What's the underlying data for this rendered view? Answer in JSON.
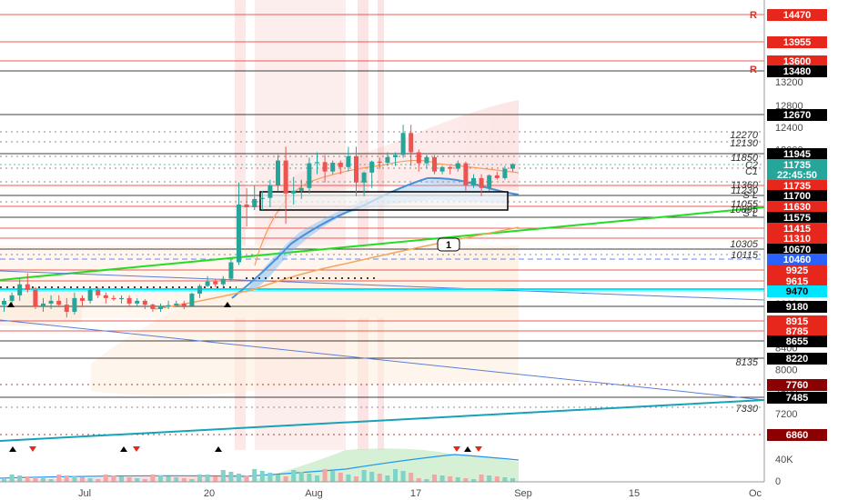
{
  "chart_data": {
    "type": "candlestick",
    "price_axis": {
      "ticks": [
        12800,
        12400,
        12000,
        11600,
        11200,
        10800,
        10400,
        10000,
        9600,
        9200,
        8800,
        8400,
        8000,
        7600,
        7200
      ],
      "extra_ticks": [
        13200,
        40000
      ],
      "ylim": [
        6800,
        14600
      ]
    },
    "time_axis": {
      "ticks": [
        "Jul",
        "20",
        "Aug",
        "17",
        "Sep",
        "15",
        "Oc"
      ]
    },
    "level_badges": [
      {
        "value": "14470",
        "bg": "#e8271c",
        "fg": "#ffffff"
      },
      {
        "value": "13955",
        "bg": "#e8271c",
        "fg": "#ffffff"
      },
      {
        "value": "13600",
        "bg": "#e8271c",
        "fg": "#ffffff"
      },
      {
        "value": "13480",
        "bg": "#000000",
        "fg": "#ffffff"
      },
      {
        "value": "12670",
        "bg": "#000000",
        "fg": "#ffffff"
      },
      {
        "value": "11945",
        "bg": "#000000",
        "fg": "#ffffff"
      },
      {
        "value": "11735",
        "bg": "#26a69a",
        "fg": "#ffffff"
      },
      {
        "value": "22:45:50",
        "bg": "#26a69a",
        "fg": "#ffffff"
      },
      {
        "value": "11735",
        "bg": "#e8271c",
        "fg": "#ffffff"
      },
      {
        "value": "11700",
        "bg": "#000000",
        "fg": "#ffffff"
      },
      {
        "value": "11630",
        "bg": "#e8271c",
        "fg": "#ffffff"
      },
      {
        "value": "11575",
        "bg": "#000000",
        "fg": "#ffffff"
      },
      {
        "value": "11415",
        "bg": "#e8271c",
        "fg": "#ffffff"
      },
      {
        "value": "11310",
        "bg": "#e8271c",
        "fg": "#ffffff"
      },
      {
        "value": "10670",
        "bg": "#000000",
        "fg": "#ffffff"
      },
      {
        "value": "10460",
        "bg": "#2962ff",
        "fg": "#ffffff"
      },
      {
        "value": "9925",
        "bg": "#e8271c",
        "fg": "#ffffff"
      },
      {
        "value": "9615",
        "bg": "#e8271c",
        "fg": "#ffffff"
      },
      {
        "value": "9470",
        "bg": "#00e5ff",
        "fg": "#000000"
      },
      {
        "value": "9180",
        "bg": "#000000",
        "fg": "#ffffff"
      },
      {
        "value": "8915",
        "bg": "#e8271c",
        "fg": "#ffffff"
      },
      {
        "value": "8785",
        "bg": "#e8271c",
        "fg": "#ffffff"
      },
      {
        "value": "8655",
        "bg": "#000000",
        "fg": "#ffffff"
      },
      {
        "value": "8220",
        "bg": "#000000",
        "fg": "#ffffff"
      },
      {
        "value": "7760",
        "bg": "#8b0000",
        "fg": "#ffffff"
      },
      {
        "value": "7485",
        "bg": "#000000",
        "fg": "#ffffff"
      },
      {
        "value": "6860",
        "bg": "#8b0000",
        "fg": "#ffffff"
      }
    ],
    "level_labels": [
      "12270",
      "12130",
      "11850",
      "C2",
      "C1",
      "11360",
      "11230",
      "S L",
      "11055",
      "10895",
      "S L",
      "10305",
      "10115",
      "8135",
      "7330"
    ],
    "marker_letters": [
      "R",
      "R"
    ],
    "annotation_labels": [
      "1"
    ],
    "candles": [
      {
        "date": "Jun 27",
        "o": 9180,
        "h": 9300,
        "l": 9050,
        "c": 9250
      },
      {
        "date": "Jun 28",
        "o": 9250,
        "h": 9400,
        "l": 9150,
        "c": 9350
      },
      {
        "date": "Jun 29",
        "o": 9350,
        "h": 9650,
        "l": 9250,
        "c": 9550
      },
      {
        "date": "Jun 30",
        "o": 9550,
        "h": 9750,
        "l": 9400,
        "c": 9450
      },
      {
        "date": "Jul 1",
        "o": 9450,
        "h": 9500,
        "l": 9100,
        "c": 9150
      },
      {
        "date": "Jul 2",
        "o": 9150,
        "h": 9300,
        "l": 9050,
        "c": 9200
      },
      {
        "date": "Jul 3",
        "o": 9200,
        "h": 9350,
        "l": 9100,
        "c": 9250
      },
      {
        "date": "Jul 4",
        "o": 9250,
        "h": 9350,
        "l": 9150,
        "c": 9180
      },
      {
        "date": "Jul 5",
        "o": 9180,
        "h": 9300,
        "l": 8950,
        "c": 9050
      },
      {
        "date": "Jul 6",
        "o": 9050,
        "h": 9400,
        "l": 9000,
        "c": 9300
      },
      {
        "date": "Jul 7",
        "o": 9300,
        "h": 9350,
        "l": 9150,
        "c": 9250
      },
      {
        "date": "Jul 8",
        "o": 9250,
        "h": 9500,
        "l": 9200,
        "c": 9450
      },
      {
        "date": "Jul 9",
        "o": 9450,
        "h": 9500,
        "l": 9300,
        "c": 9350
      },
      {
        "date": "Jul 10",
        "o": 9350,
        "h": 9400,
        "l": 9200,
        "c": 9300
      },
      {
        "date": "Jul 11",
        "o": 9300,
        "h": 9350,
        "l": 9250,
        "c": 9280
      },
      {
        "date": "Jul 12",
        "o": 9280,
        "h": 9350,
        "l": 9200,
        "c": 9300
      },
      {
        "date": "Jul 13",
        "o": 9300,
        "h": 9350,
        "l": 9150,
        "c": 9200
      },
      {
        "date": "Jul 14",
        "o": 9200,
        "h": 9300,
        "l": 9150,
        "c": 9250
      },
      {
        "date": "Jul 15",
        "o": 9250,
        "h": 9280,
        "l": 9100,
        "c": 9180
      },
      {
        "date": "Jul 16",
        "o": 9180,
        "h": 9200,
        "l": 9050,
        "c": 9100
      },
      {
        "date": "Jul 17",
        "o": 9100,
        "h": 9200,
        "l": 9050,
        "c": 9150
      },
      {
        "date": "Jul 18",
        "o": 9150,
        "h": 9250,
        "l": 9100,
        "c": 9170
      },
      {
        "date": "Jul 19",
        "o": 9170,
        "h": 9250,
        "l": 9150,
        "c": 9200
      },
      {
        "date": "Jul 20",
        "o": 9200,
        "h": 9250,
        "l": 9100,
        "c": 9160
      },
      {
        "date": "Jul 21",
        "o": 9160,
        "h": 9400,
        "l": 9150,
        "c": 9380
      },
      {
        "date": "Jul 22",
        "o": 9380,
        "h": 9550,
        "l": 9300,
        "c": 9520
      },
      {
        "date": "Jul 23",
        "o": 9520,
        "h": 9700,
        "l": 9500,
        "c": 9600
      },
      {
        "date": "Jul 24",
        "o": 9600,
        "h": 9650,
        "l": 9500,
        "c": 9550
      },
      {
        "date": "Jul 25",
        "o": 9550,
        "h": 9700,
        "l": 9500,
        "c": 9650
      },
      {
        "date": "Jul 26",
        "o": 9650,
        "h": 10000,
        "l": 9600,
        "c": 9950
      },
      {
        "date": "Jul 27",
        "o": 9950,
        "h": 11400,
        "l": 9900,
        "c": 11000
      },
      {
        "date": "Jul 28",
        "o": 11000,
        "h": 11300,
        "l": 10600,
        "c": 10950
      },
      {
        "date": "Jul 29",
        "o": 10950,
        "h": 11350,
        "l": 10900,
        "c": 11100
      },
      {
        "date": "Jul 30",
        "o": 11100,
        "h": 11250,
        "l": 10900,
        "c": 11120
      },
      {
        "date": "Jul 31",
        "o": 11120,
        "h": 11450,
        "l": 10950,
        "c": 11350
      },
      {
        "date": "Aug 1",
        "o": 11350,
        "h": 11900,
        "l": 11250,
        "c": 11800
      },
      {
        "date": "Aug 2",
        "o": 11800,
        "h": 12050,
        "l": 10650,
        "c": 11200
      },
      {
        "date": "Aug 3",
        "o": 11200,
        "h": 11500,
        "l": 11000,
        "c": 11250
      },
      {
        "date": "Aug 4",
        "o": 11250,
        "h": 11450,
        "l": 11100,
        "c": 11300
      },
      {
        "date": "Aug 5",
        "o": 11300,
        "h": 11850,
        "l": 11200,
        "c": 11750
      },
      {
        "date": "Aug 6",
        "o": 11750,
        "h": 11950,
        "l": 11550,
        "c": 11770
      },
      {
        "date": "Aug 7",
        "o": 11770,
        "h": 11900,
        "l": 11400,
        "c": 11600
      },
      {
        "date": "Aug 8",
        "o": 11600,
        "h": 11800,
        "l": 11550,
        "c": 11760
      },
      {
        "date": "Aug 9",
        "o": 11760,
        "h": 11800,
        "l": 11550,
        "c": 11680
      },
      {
        "date": "Aug 10",
        "o": 11680,
        "h": 12050,
        "l": 11600,
        "c": 11880
      },
      {
        "date": "Aug 11",
        "o": 11880,
        "h": 12050,
        "l": 11150,
        "c": 11400
      },
      {
        "date": "Aug 12",
        "o": 11400,
        "h": 11600,
        "l": 11150,
        "c": 11580
      },
      {
        "date": "Aug 13",
        "o": 11580,
        "h": 11800,
        "l": 11300,
        "c": 11780
      },
      {
        "date": "Aug 14",
        "o": 11780,
        "h": 11850,
        "l": 11650,
        "c": 11760
      },
      {
        "date": "Aug 15",
        "o": 11760,
        "h": 11950,
        "l": 11700,
        "c": 11860
      },
      {
        "date": "Aug 16",
        "o": 11860,
        "h": 11950,
        "l": 11700,
        "c": 11900
      },
      {
        "date": "Aug 17",
        "o": 11900,
        "h": 12450,
        "l": 11850,
        "c": 12300
      },
      {
        "date": "Aug 18",
        "o": 12300,
        "h": 12450,
        "l": 11700,
        "c": 11950
      },
      {
        "date": "Aug 19",
        "o": 11950,
        "h": 12000,
        "l": 11600,
        "c": 11750
      },
      {
        "date": "Aug 20",
        "o": 11750,
        "h": 11900,
        "l": 11650,
        "c": 11860
      },
      {
        "date": "Aug 21",
        "o": 11860,
        "h": 11900,
        "l": 11550,
        "c": 11600
      },
      {
        "date": "Aug 22",
        "o": 11600,
        "h": 11700,
        "l": 11550,
        "c": 11680
      },
      {
        "date": "Aug 23",
        "o": 11680,
        "h": 11700,
        "l": 11550,
        "c": 11650
      },
      {
        "date": "Aug 24",
        "o": 11650,
        "h": 11800,
        "l": 11600,
        "c": 11750
      },
      {
        "date": "Aug 25",
        "o": 11750,
        "h": 11780,
        "l": 11250,
        "c": 11350
      },
      {
        "date": "Aug 26",
        "o": 11350,
        "h": 11550,
        "l": 11300,
        "c": 11480
      },
      {
        "date": "Aug 27",
        "o": 11480,
        "h": 11550,
        "l": 11150,
        "c": 11300
      },
      {
        "date": "Aug 28",
        "o": 11300,
        "h": 11550,
        "l": 11250,
        "c": 11530
      },
      {
        "date": "Aug 29",
        "o": 11530,
        "h": 11600,
        "l": 11450,
        "c": 11480
      },
      {
        "date": "Aug 30",
        "o": 11480,
        "h": 11700,
        "l": 11450,
        "c": 11650
      },
      {
        "date": "Aug 31",
        "o": 11650,
        "h": 11750,
        "l": 11600,
        "c": 11735
      }
    ],
    "colors": {
      "up": "#26a69a",
      "down": "#ef5350"
    },
    "grid": false
  }
}
